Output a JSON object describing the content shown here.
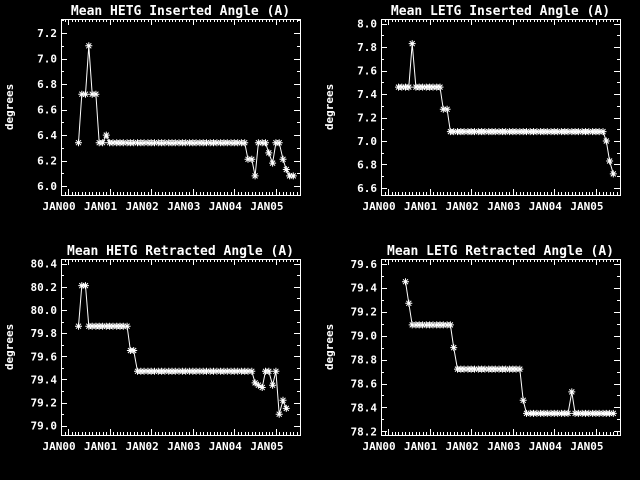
{
  "page": {
    "background": "#000000",
    "foreground": "#ffffff"
  },
  "chart_data": [
    {
      "id": "hetg-inserted",
      "type": "line",
      "title": "Mean HETG Inserted Angle (A)",
      "ylabel": "degrees",
      "marker": "asterisk",
      "legend": "none",
      "grid": "off",
      "xlim": [
        1999.83,
        2005.58
      ],
      "ylim": [
        5.93,
        7.31
      ],
      "xticks": {
        "values": [
          2000,
          2001,
          2002,
          2003,
          2004,
          2005
        ],
        "labels": [
          "JAN00",
          "JAN01",
          "JAN02",
          "JAN03",
          "JAN04",
          "JAN05"
        ]
      },
      "yticks": {
        "values": [
          6.0,
          6.2,
          6.4,
          6.6,
          6.8,
          7.0,
          7.2
        ],
        "labels": [
          "6.0",
          "6.2",
          "6.4",
          "6.6",
          "6.8",
          "7.0",
          "7.2"
        ]
      },
      "x": [
        2000.25,
        2000.33,
        2000.42,
        2000.5,
        2000.58,
        2000.67,
        2000.75,
        2000.83,
        2000.92,
        2001.0,
        2001.08,
        2001.17,
        2001.25,
        2001.33,
        2001.42,
        2001.5,
        2001.58,
        2001.67,
        2001.75,
        2001.83,
        2001.92,
        2002.0,
        2002.08,
        2002.17,
        2002.25,
        2002.33,
        2002.42,
        2002.5,
        2002.58,
        2002.67,
        2002.75,
        2002.83,
        2002.92,
        2003.0,
        2003.08,
        2003.17,
        2003.25,
        2003.33,
        2003.42,
        2003.5,
        2003.58,
        2003.67,
        2003.75,
        2003.83,
        2003.92,
        2004.0,
        2004.08,
        2004.17,
        2004.25,
        2004.33,
        2004.42,
        2004.5,
        2004.58,
        2004.67,
        2004.75,
        2004.83,
        2004.92,
        2005.0,
        2005.08,
        2005.17,
        2005.25,
        2005.33,
        2005.42
      ],
      "y": [
        6.34,
        6.72,
        6.72,
        7.1,
        6.72,
        6.72,
        6.34,
        6.34,
        6.4,
        6.34,
        6.34,
        6.34,
        6.34,
        6.34,
        6.34,
        6.34,
        6.34,
        6.34,
        6.34,
        6.34,
        6.34,
        6.34,
        6.34,
        6.34,
        6.34,
        6.34,
        6.34,
        6.34,
        6.34,
        6.34,
        6.34,
        6.34,
        6.34,
        6.34,
        6.34,
        6.34,
        6.34,
        6.34,
        6.34,
        6.34,
        6.34,
        6.34,
        6.34,
        6.34,
        6.34,
        6.34,
        6.34,
        6.34,
        6.34,
        6.21,
        6.21,
        6.08,
        6.34,
        6.34,
        6.34,
        6.26,
        6.18,
        6.34,
        6.34,
        6.21,
        6.13,
        6.08,
        6.08
      ]
    },
    {
      "id": "letg-inserted",
      "type": "line",
      "title": "Mean LETG Inserted Angle (A)",
      "ylabel": "degrees",
      "marker": "asterisk",
      "legend": "none",
      "grid": "off",
      "xlim": [
        1999.83,
        2005.58
      ],
      "ylim": [
        6.54,
        8.04
      ],
      "xticks": {
        "values": [
          2000,
          2001,
          2002,
          2003,
          2004,
          2005
        ],
        "labels": [
          "JAN00",
          "JAN01",
          "JAN02",
          "JAN03",
          "JAN04",
          "JAN05"
        ]
      },
      "yticks": {
        "values": [
          6.6,
          6.8,
          7.0,
          7.2,
          7.4,
          7.6,
          7.8,
          8.0
        ],
        "labels": [
          "6.6",
          "6.8",
          "7.0",
          "7.2",
          "7.4",
          "7.6",
          "7.8",
          "8.0"
        ]
      },
      "x": [
        2000.25,
        2000.33,
        2000.42,
        2000.5,
        2000.58,
        2000.67,
        2000.75,
        2000.83,
        2000.92,
        2001.0,
        2001.08,
        2001.17,
        2001.25,
        2001.33,
        2001.42,
        2001.5,
        2001.58,
        2001.67,
        2001.75,
        2001.83,
        2001.92,
        2002.0,
        2002.08,
        2002.17,
        2002.25,
        2002.33,
        2002.42,
        2002.5,
        2002.58,
        2002.67,
        2002.75,
        2002.83,
        2002.92,
        2003.0,
        2003.08,
        2003.17,
        2003.25,
        2003.33,
        2003.42,
        2003.5,
        2003.58,
        2003.67,
        2003.75,
        2003.83,
        2003.92,
        2004.0,
        2004.08,
        2004.17,
        2004.25,
        2004.33,
        2004.42,
        2004.5,
        2004.58,
        2004.67,
        2004.75,
        2004.83,
        2004.92,
        2005.0,
        2005.08,
        2005.17,
        2005.25,
        2005.33,
        2005.42
      ],
      "y": [
        7.46,
        7.46,
        7.46,
        7.46,
        7.83,
        7.46,
        7.46,
        7.46,
        7.46,
        7.46,
        7.46,
        7.46,
        7.46,
        7.27,
        7.27,
        7.08,
        7.08,
        7.08,
        7.08,
        7.08,
        7.08,
        7.08,
        7.08,
        7.08,
        7.08,
        7.08,
        7.08,
        7.08,
        7.08,
        7.08,
        7.08,
        7.08,
        7.08,
        7.08,
        7.08,
        7.08,
        7.08,
        7.08,
        7.08,
        7.08,
        7.08,
        7.08,
        7.08,
        7.08,
        7.08,
        7.08,
        7.08,
        7.08,
        7.08,
        7.08,
        7.08,
        7.08,
        7.08,
        7.08,
        7.08,
        7.08,
        7.08,
        7.08,
        7.08,
        7.08,
        7.0,
        6.83,
        6.72
      ]
    },
    {
      "id": "hetg-retracted",
      "type": "line",
      "title": "Mean HETG Retracted Angle (A)",
      "ylabel": "degrees",
      "marker": "asterisk",
      "legend": "none",
      "grid": "off",
      "xlim": [
        1999.83,
        2005.58
      ],
      "ylim": [
        78.92,
        80.44
      ],
      "xticks": {
        "values": [
          2000,
          2001,
          2002,
          2003,
          2004,
          2005
        ],
        "labels": [
          "JAN00",
          "JAN01",
          "JAN02",
          "JAN03",
          "JAN04",
          "JAN05"
        ]
      },
      "yticks": {
        "values": [
          79.0,
          79.2,
          79.4,
          79.6,
          79.8,
          80.0,
          80.2,
          80.4
        ],
        "labels": [
          "79.0",
          "79.2",
          "79.4",
          "79.6",
          "79.8",
          "80.0",
          "80.2",
          "80.4"
        ]
      },
      "x": [
        2000.25,
        2000.33,
        2000.42,
        2000.5,
        2000.58,
        2000.67,
        2000.75,
        2000.83,
        2000.92,
        2001.0,
        2001.08,
        2001.17,
        2001.25,
        2001.33,
        2001.42,
        2001.5,
        2001.58,
        2001.67,
        2001.75,
        2001.83,
        2001.92,
        2002.0,
        2002.08,
        2002.17,
        2002.25,
        2002.33,
        2002.42,
        2002.5,
        2002.58,
        2002.67,
        2002.75,
        2002.83,
        2002.92,
        2003.0,
        2003.08,
        2003.17,
        2003.25,
        2003.33,
        2003.42,
        2003.5,
        2003.58,
        2003.67,
        2003.75,
        2003.83,
        2003.92,
        2004.0,
        2004.08,
        2004.17,
        2004.25,
        2004.33,
        2004.42,
        2004.5,
        2004.58,
        2004.67,
        2004.75,
        2004.83,
        2004.92,
        2005.0,
        2005.08,
        2005.17,
        2005.25
      ],
      "y": [
        79.86,
        80.21,
        80.21,
        79.86,
        79.86,
        79.86,
        79.86,
        79.86,
        79.86,
        79.86,
        79.86,
        79.86,
        79.86,
        79.86,
        79.86,
        79.65,
        79.65,
        79.47,
        79.47,
        79.47,
        79.47,
        79.47,
        79.47,
        79.47,
        79.47,
        79.47,
        79.47,
        79.47,
        79.47,
        79.47,
        79.47,
        79.47,
        79.47,
        79.47,
        79.47,
        79.47,
        79.47,
        79.47,
        79.47,
        79.47,
        79.47,
        79.47,
        79.47,
        79.47,
        79.47,
        79.47,
        79.47,
        79.47,
        79.47,
        79.47,
        79.47,
        79.37,
        79.35,
        79.33,
        79.47,
        79.47,
        79.35,
        79.47,
        79.1,
        79.22,
        79.15
      ]
    },
    {
      "id": "letg-retracted",
      "type": "line",
      "title": "Mean LETG Retracted Angle (A)",
      "ylabel": "degrees",
      "marker": "asterisk",
      "legend": "none",
      "grid": "off",
      "xlim": [
        1999.83,
        2005.58
      ],
      "ylim": [
        78.17,
        79.64
      ],
      "xticks": {
        "values": [
          2000,
          2001,
          2002,
          2003,
          2004,
          2005
        ],
        "labels": [
          "JAN00",
          "JAN01",
          "JAN02",
          "JAN03",
          "JAN04",
          "JAN05"
        ]
      },
      "yticks": {
        "values": [
          78.2,
          78.4,
          78.6,
          78.8,
          79.0,
          79.2,
          79.4,
          79.6
        ],
        "labels": [
          "78.2",
          "78.4",
          "78.6",
          "78.8",
          "79.0",
          "79.2",
          "79.4",
          "79.6"
        ]
      },
      "x": [
        2000.42,
        2000.5,
        2000.58,
        2000.67,
        2000.75,
        2000.83,
        2000.92,
        2001.0,
        2001.08,
        2001.17,
        2001.25,
        2001.33,
        2001.42,
        2001.5,
        2001.58,
        2001.67,
        2001.75,
        2001.83,
        2001.92,
        2002.0,
        2002.08,
        2002.17,
        2002.25,
        2002.33,
        2002.42,
        2002.5,
        2002.58,
        2002.67,
        2002.75,
        2002.83,
        2002.92,
        2003.0,
        2003.08,
        2003.17,
        2003.25,
        2003.33,
        2003.42,
        2003.5,
        2003.58,
        2003.67,
        2003.75,
        2003.83,
        2003.92,
        2004.0,
        2004.08,
        2004.17,
        2004.25,
        2004.33,
        2004.42,
        2004.5,
        2004.58,
        2004.67,
        2004.75,
        2004.83,
        2004.92,
        2005.0,
        2005.08,
        2005.17,
        2005.25,
        2005.33,
        2005.42
      ],
      "y": [
        79.45,
        79.27,
        79.09,
        79.09,
        79.09,
        79.09,
        79.09,
        79.09,
        79.09,
        79.09,
        79.09,
        79.09,
        79.09,
        79.09,
        78.9,
        78.72,
        78.72,
        78.72,
        78.72,
        78.72,
        78.72,
        78.72,
        78.72,
        78.72,
        78.72,
        78.72,
        78.72,
        78.72,
        78.72,
        78.72,
        78.72,
        78.72,
        78.72,
        78.72,
        78.46,
        78.35,
        78.35,
        78.35,
        78.35,
        78.35,
        78.35,
        78.35,
        78.35,
        78.35,
        78.35,
        78.35,
        78.35,
        78.35,
        78.53,
        78.35,
        78.35,
        78.35,
        78.35,
        78.35,
        78.35,
        78.35,
        78.35,
        78.35,
        78.35,
        78.35,
        78.35
      ]
    }
  ]
}
